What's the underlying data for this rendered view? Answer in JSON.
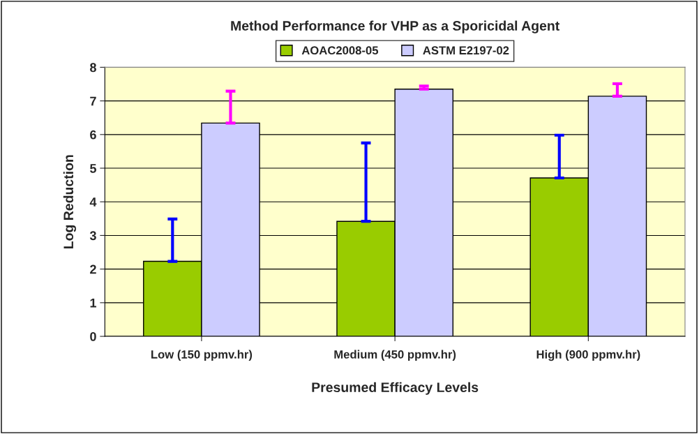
{
  "chart_data": {
    "type": "bar",
    "title": "Method Performance for VHP as a Sporicidal Agent",
    "xlabel": "Presumed Efficacy Levels",
    "ylabel": "Log Reduction",
    "categories": [
      "Low (150 ppmv.hr)",
      "Medium (450 ppmv.hr)",
      "High (900 ppmv.hr)"
    ],
    "series": [
      {
        "name": "AOAC2008-05",
        "color": "#99cc00",
        "values": [
          2.23,
          3.42,
          4.71
        ],
        "errors": [
          [
            2.23,
            3.49
          ],
          [
            3.42,
            5.75
          ],
          [
            4.71,
            5.98
          ]
        ]
      },
      {
        "name": "ASTM E2197-02",
        "color": "#ccccff",
        "values": [
          6.34,
          7.35,
          7.14
        ],
        "errors": [
          [
            6.34,
            7.29
          ],
          [
            7.35,
            7.44
          ],
          [
            7.14,
            7.51
          ]
        ]
      }
    ],
    "ylim": [
      0,
      8
    ],
    "yticks": [
      0,
      1,
      2,
      3,
      4,
      5,
      6,
      7,
      8
    ],
    "grid": "y",
    "legend": "top"
  }
}
